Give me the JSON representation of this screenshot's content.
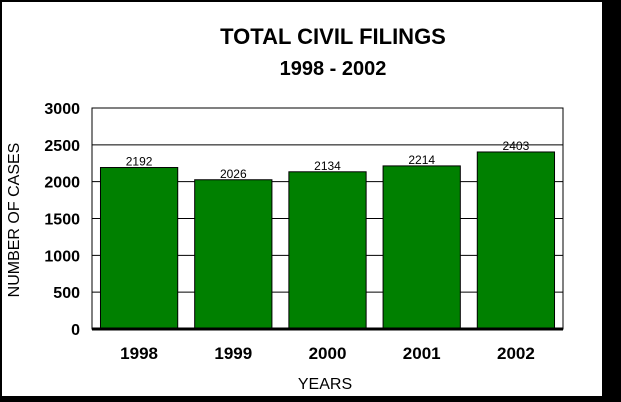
{
  "chart_data": {
    "type": "bar",
    "title": "TOTAL CIVIL FILINGS",
    "subtitle": "1998 - 2002",
    "xlabel": "YEARS",
    "ylabel": "NUMBER OF CASES",
    "categories": [
      "1998",
      "1999",
      "2000",
      "2001",
      "2002"
    ],
    "values": [
      2192,
      2026,
      2134,
      2214,
      2403
    ],
    "data_labels": [
      "2192",
      "2026",
      "2134",
      "2214",
      "2403"
    ],
    "ylim": [
      0,
      3000
    ],
    "yticks": [
      "0",
      "500",
      "1000",
      "1500",
      "2000",
      "2500",
      "3000"
    ],
    "grid": true,
    "legend": "none",
    "colors": {
      "bar": "#008000",
      "bar_edge": "#000000",
      "frame": "#000000",
      "background": "#ffffff"
    }
  }
}
